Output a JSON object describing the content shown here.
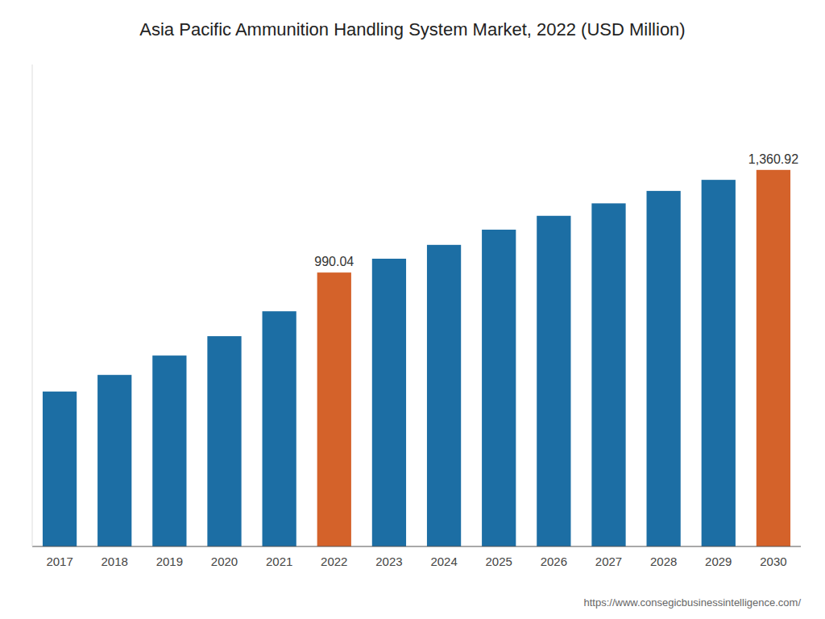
{
  "chart_data": {
    "type": "bar",
    "title": "Asia Pacific Ammunition Handling System Market, 2022 (USD Million)",
    "categories": [
      "2017",
      "2018",
      "2019",
      "2020",
      "2021",
      "2022",
      "2023",
      "2024",
      "2025",
      "2026",
      "2027",
      "2028",
      "2029",
      "2030"
    ],
    "values": [
      560,
      620,
      690,
      760,
      850,
      990.04,
      1040,
      1090,
      1145,
      1195,
      1240,
      1285,
      1325,
      1360.92
    ],
    "value_labels": [
      null,
      null,
      null,
      null,
      null,
      "990.04",
      null,
      null,
      null,
      null,
      null,
      null,
      null,
      "1,360.92"
    ],
    "colors": [
      "#1c6ea4",
      "#1c6ea4",
      "#1c6ea4",
      "#1c6ea4",
      "#1c6ea4",
      "#d4622a",
      "#1c6ea4",
      "#1c6ea4",
      "#1c6ea4",
      "#1c6ea4",
      "#1c6ea4",
      "#1c6ea4",
      "#1c6ea4",
      "#d4622a"
    ],
    "ylim": [
      0,
      1741.9776
    ],
    "grid": false,
    "tick_labels": "x",
    "annotations": [
      "https://www.consegicbusinessintelligence.com/"
    ]
  }
}
